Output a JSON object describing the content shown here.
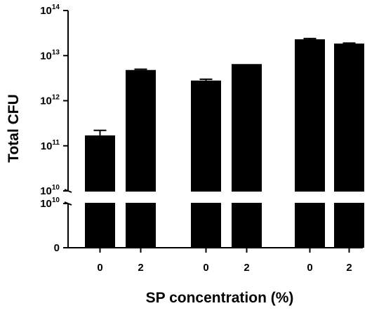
{
  "chart_data": {
    "type": "bar",
    "title": "",
    "ylabel": "Total CFU",
    "xlabel": "SP concentration (%)",
    "y_scale": "log",
    "y_axis_broken": true,
    "categories": [
      "0",
      "2",
      "0",
      "2",
      "0",
      "2"
    ],
    "group_gaps_after": [
      1,
      3
    ],
    "values": [
      170000000000.0,
      4800000000000.0,
      2800000000000.0,
      6500000000000.0,
      23000000000000.0,
      18500000000000.0
    ],
    "error_upper": [
      220000000000.0,
      5000000000000.0,
      3000000000000.0,
      6500000000000.0,
      24000000000000.0,
      19000000000000.0
    ],
    "ylim_upper": [
      10000000000.0,
      100000000000000.0
    ],
    "upper_ticks": [
      {
        "value": 100000000000000.0,
        "base": "10",
        "exp": "14"
      },
      {
        "value": 10000000000000.0,
        "base": "10",
        "exp": "13"
      },
      {
        "value": 1000000000000.0,
        "base": "10",
        "exp": "12"
      },
      {
        "value": 100000000000.0,
        "base": "10",
        "exp": "11"
      },
      {
        "value": 10000000000.0,
        "base": "10",
        "exp": "10"
      }
    ],
    "lower_ticks": [
      {
        "value": 10000000000.0,
        "base": "10",
        "exp": "10"
      },
      {
        "value": 0,
        "base": "0",
        "exp": ""
      }
    ],
    "bar_color": "#000000",
    "grid": false,
    "legend": "none"
  }
}
